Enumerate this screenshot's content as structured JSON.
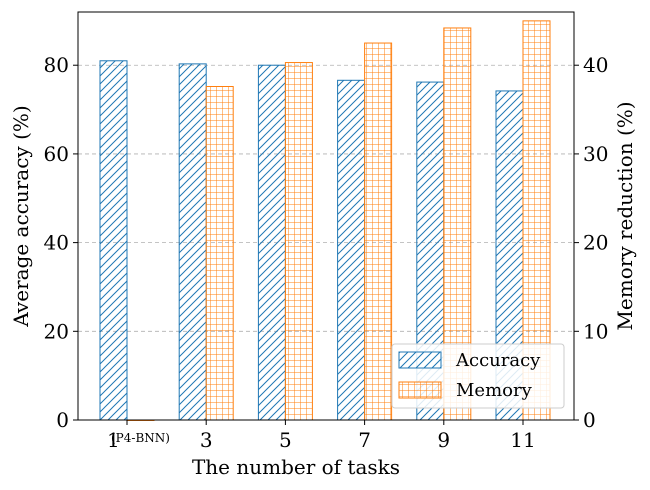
{
  "chart_data": {
    "type": "bar",
    "xlabel": "The number of tasks",
    "ylabel_left": "Average accuracy (%)",
    "ylabel_right": "Memory reduction (%)",
    "categories": [
      "1",
      "3",
      "5",
      "7",
      "9",
      "11"
    ],
    "first_category_note": "(P4-BNN)",
    "ylim_left": [
      0,
      92
    ],
    "ylim_right": [
      0,
      46
    ],
    "yticks_left": [
      0,
      20,
      40,
      60,
      80
    ],
    "yticks_right": [
      0,
      10,
      20,
      30,
      40
    ],
    "grid": "horizontal dashed",
    "legend_position": "lower-right",
    "series": [
      {
        "name": "Accuracy",
        "axis": "left",
        "color": "#1f77b4",
        "hatch": "diagonal",
        "values": [
          81.0,
          80.3,
          80.0,
          76.6,
          76.2,
          74.2
        ]
      },
      {
        "name": "Memory",
        "axis": "right",
        "color": "#ff7f0e",
        "hatch": "grid",
        "values": [
          0.0,
          37.6,
          40.3,
          42.5,
          44.2,
          45.0
        ]
      }
    ]
  }
}
